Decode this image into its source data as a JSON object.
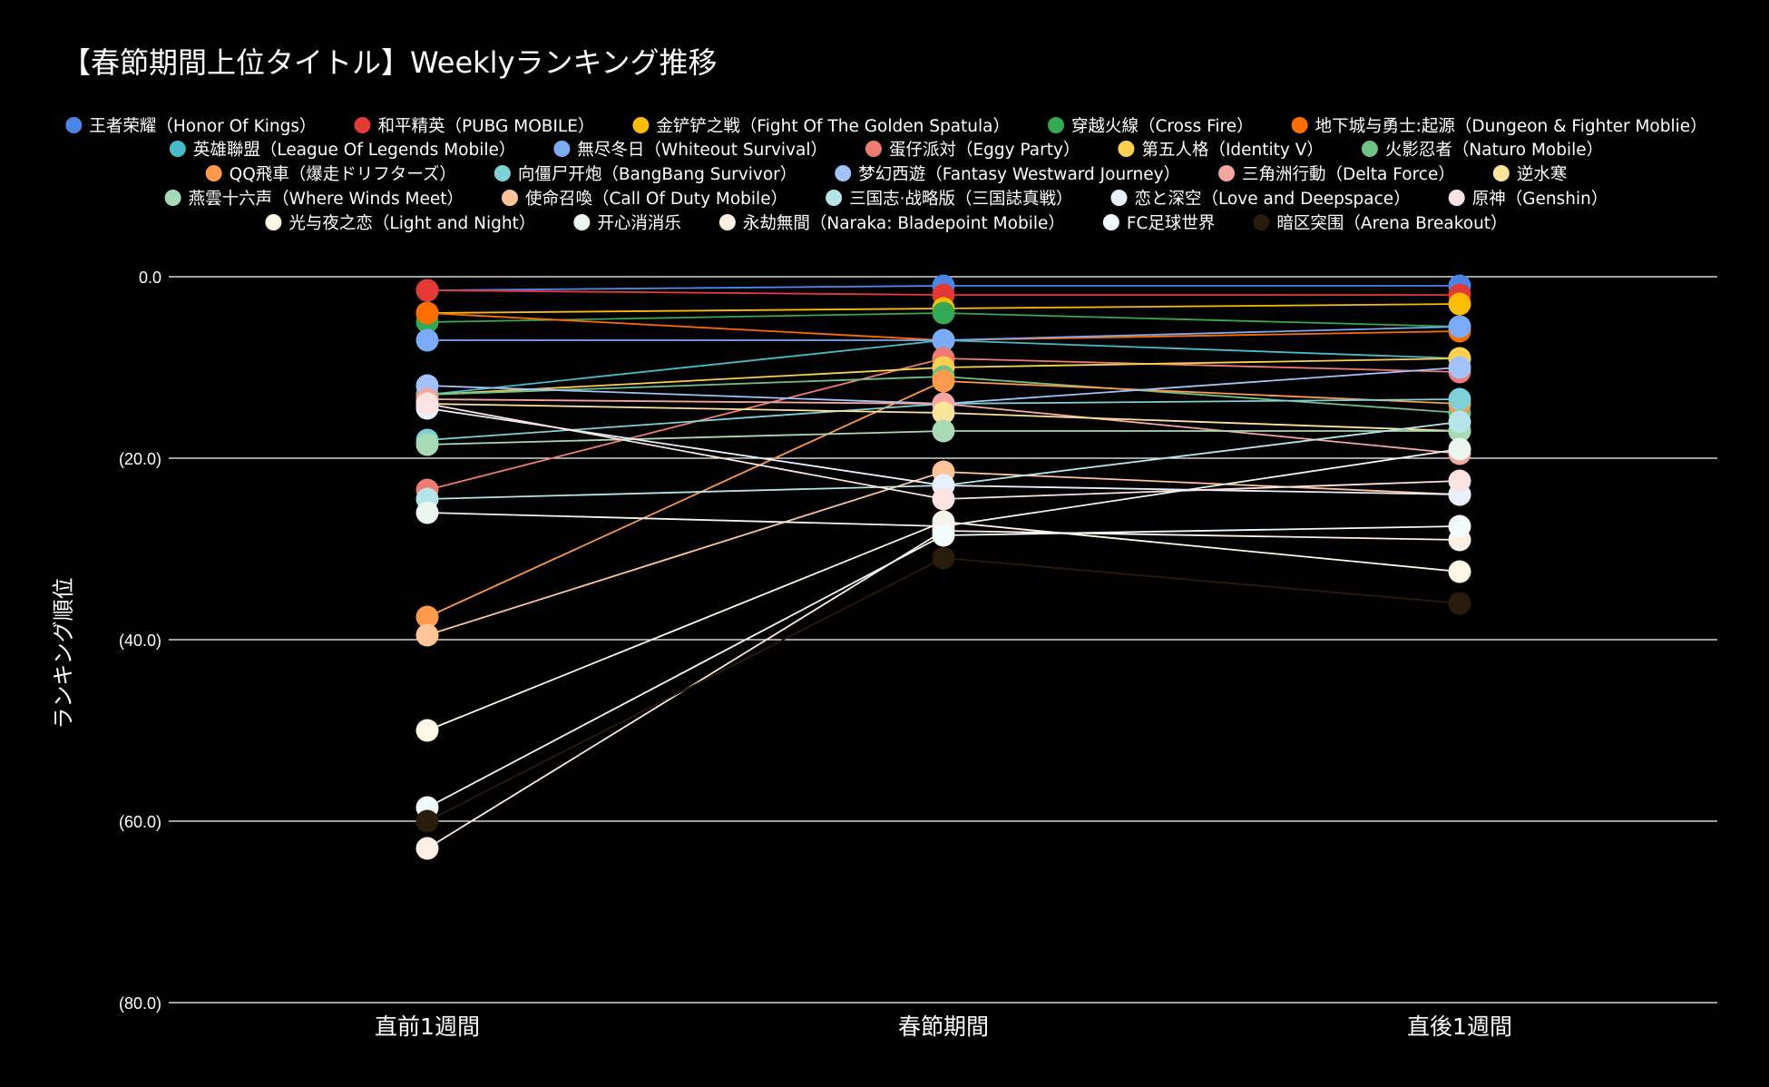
{
  "chart_data": {
    "type": "line",
    "title": "【春節期間上位タイトル】Weeklyランキング推移",
    "xlabel": "",
    "ylabel": "ランキング順位",
    "categories": [
      "直前1週間",
      "春節期間",
      "直後1週間"
    ],
    "ylim": [
      80,
      0
    ],
    "yticks": [
      0,
      20,
      40,
      60,
      80
    ],
    "ytick_labels": [
      "0.0",
      "(20.0)",
      "(40.0)",
      "(60.0)",
      "(80.0)"
    ],
    "grid": true,
    "legend_position": "top",
    "series": [
      {
        "name": "王者荣耀（Honor Of Kings）",
        "color": "#4a86e8",
        "values": [
          1.5,
          1,
          1
        ]
      },
      {
        "name": "和平精英（PUBG MOBILE）",
        "color": "#e53935",
        "values": [
          1.5,
          2,
          2
        ]
      },
      {
        "name": "金铲铲之戦（Fight Of The Golden Spatula）",
        "color": "#fbbc04",
        "values": [
          4,
          3.5,
          3
        ]
      },
      {
        "name": "穿越火線（Cross Fire）",
        "color": "#34a853",
        "values": [
          5,
          4,
          5.5
        ]
      },
      {
        "name": "地下城与勇士:起源（Dungeon & Fighter Moblie）",
        "color": "#ff6d01",
        "values": [
          4,
          7,
          6
        ]
      },
      {
        "name": "英雄聯盟（League Of Legends Mobile）",
        "color": "#46bdc6",
        "values": [
          13,
          7,
          9
        ]
      },
      {
        "name": "無尽冬日（Whiteout Survival）",
        "color": "#7baaf7",
        "values": [
          7,
          7,
          5.5
        ]
      },
      {
        "name": "蛋仔派対（Eggy Party）",
        "color": "#f07b72",
        "values": [
          23.5,
          9,
          10.5
        ]
      },
      {
        "name": "第五人格（Identity V）",
        "color": "#fcd04f",
        "values": [
          13,
          10,
          9
        ]
      },
      {
        "name": "火影忍者（Naturo Mobile）",
        "color": "#71c287",
        "values": [
          13,
          11,
          15
        ]
      },
      {
        "name": "QQ飛車（爆走ドリフターズ）",
        "color": "#ff994d",
        "values": [
          37.5,
          11.5,
          14
        ]
      },
      {
        "name": "向僵尸开炮（BangBang Survivor）",
        "color": "#7ed1d7",
        "values": [
          18,
          14,
          13.5
        ]
      },
      {
        "name": "梦幻西遊（Fantasy Westward Journey）",
        "color": "#a3c2fa",
        "values": [
          12,
          14,
          10
        ]
      },
      {
        "name": "三角洲行動（Delta Force）",
        "color": "#f5a6a1",
        "values": [
          13.5,
          14,
          19.5
        ]
      },
      {
        "name": "逆水寒",
        "color": "#fde49b",
        "values": [
          14,
          15,
          17
        ]
      },
      {
        "name": "燕雲十六声（Where Winds Meet）",
        "color": "#a8dab5",
        "values": [
          18.5,
          17,
          17
        ]
      },
      {
        "name": "使命召喚（Call Of Duty Mobile）",
        "color": "#ffc599",
        "values": [
          39.5,
          21.5,
          24
        ]
      },
      {
        "name": "三国志·战略版（三国誌真戦）",
        "color": "#b5e5e8",
        "values": [
          24.5,
          23,
          16
        ]
      },
      {
        "name": "恋と深空（Love and Deepspace）",
        "color": "#e8f0fe",
        "values": [
          14.5,
          23,
          24
        ]
      },
      {
        "name": "原神（Genshin）",
        "color": "#fde2e2",
        "values": [
          14,
          24.5,
          22.5
        ]
      },
      {
        "name": "光与夜之恋（Light and Night）",
        "color": "#fff8e7",
        "values": [
          50,
          27,
          32.5
        ]
      },
      {
        "name": "开心消消乐",
        "color": "#eaf6ee",
        "values": [
          26,
          27.5,
          19
        ]
      },
      {
        "name": "永劫無間（Naraka: Bladepoint Mobile）",
        "color": "#ffefe4",
        "values": [
          63,
          28,
          29
        ]
      },
      {
        "name": "FC足球世界",
        "color": "#f2fbfc",
        "values": [
          58.5,
          28.5,
          27.5
        ]
      },
      {
        "name": "暗区突围（Arena Breakout）",
        "color": "#2a1c0c",
        "values": [
          60,
          31,
          36
        ]
      }
    ]
  }
}
